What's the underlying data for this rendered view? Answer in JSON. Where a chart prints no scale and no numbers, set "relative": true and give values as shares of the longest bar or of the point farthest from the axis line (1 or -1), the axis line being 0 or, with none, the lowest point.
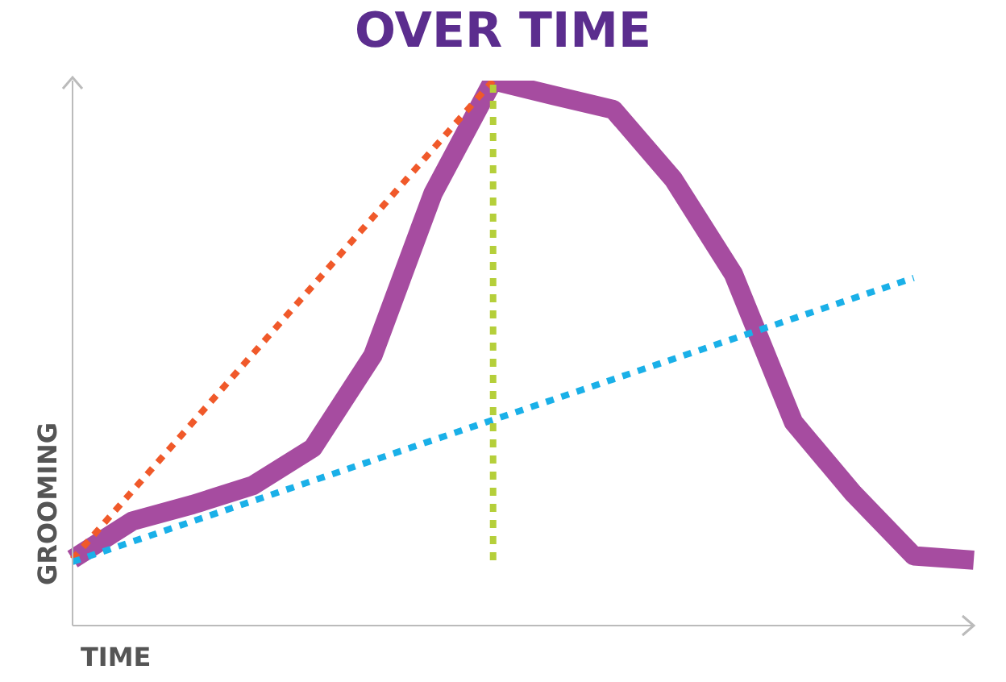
{
  "chart_data": {
    "type": "line",
    "title": "OVER TIME",
    "xlabel": "TIME",
    "ylabel": "GROOMING",
    "relative": true,
    "categories": [
      null,
      null,
      null,
      null,
      null,
      null,
      null,
      null,
      null,
      null,
      null,
      null,
      null,
      null,
      null,
      null
    ],
    "series": [
      {
        "color": "#a64ca0",
        "line_style": "solid",
        "values": [
          0.122,
          0.192,
          0.222,
          0.257,
          0.326,
          0.496,
          0.793,
          1,
          0.973,
          0.947,
          0.819,
          0.645,
          0.373,
          0.242,
          0.128,
          0.12
        ]
      },
      {
        "color": "#f0592a",
        "line_style": "dotted",
        "values": [
          0.122,
          null,
          null,
          null,
          null,
          null,
          null,
          1,
          null,
          null,
          null,
          null,
          null,
          null,
          null,
          null
        ]
      },
      {
        "color": "#1ab0e8",
        "line_style": "dotted",
        "values": [
          0.117,
          null,
          null,
          null,
          null,
          null,
          null,
          null,
          null,
          null,
          null,
          null,
          null,
          null,
          0.638,
          null
        ]
      }
    ]
  }
}
